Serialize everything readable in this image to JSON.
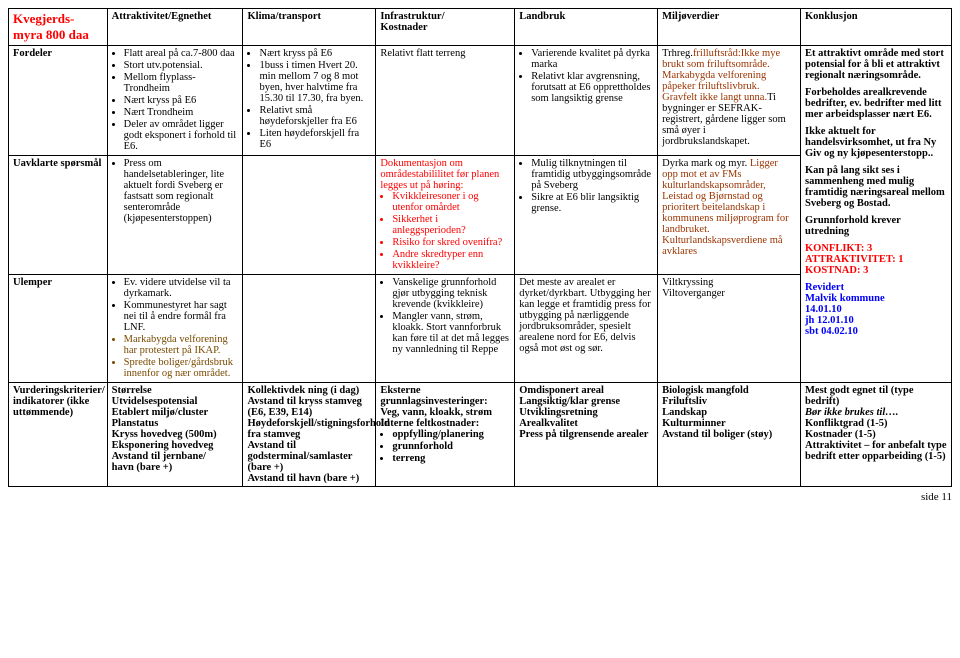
{
  "page": {
    "title_line1": "Kvegjerds-",
    "title_line2": "myra 800 daa",
    "footer": "side 11"
  },
  "cols": {
    "c0_width": 98,
    "c1_width": 135,
    "c2_width": 132,
    "c3_width": 138,
    "c4_width": 142,
    "c5_width": 142,
    "c6_width": 150
  },
  "headers": {
    "attraktivitet": "Attraktivitet/Egnethet",
    "klima": "Klima/transport",
    "infrastruktur_l1": "Infrastruktur/",
    "infrastruktur_l2": "Kostnader",
    "landbruk": "Landbruk",
    "miljoverdier": "Miljøverdier",
    "konklusjon": "Konklusjon"
  },
  "rowlabels": {
    "fordeler": "Fordeler",
    "uavklarte": "Uavklarte spørsmål",
    "ulemper": "Ulemper",
    "kriterier_l1": "Vurderingskriterier/",
    "kriterier_l2": "indikatorer (ikke",
    "kriterier_l3": "uttømmende)"
  },
  "colors": {
    "black": "#000000",
    "red": "#ff0000",
    "rust": "#993300",
    "blue": "#0000ff",
    "brown": "#7a4a00"
  },
  "fordeler": {
    "attr": [
      "Flatt areal på ca.7-800 daa",
      "Stort utv.potensial.",
      "Mellom flyplass-Trondheim",
      "Nært kryss på E6",
      "Nært Trondheim",
      "Deler av området ligger godt eksponert i forhold til E6."
    ],
    "klima": [
      "Nært kryss på E6",
      "1buss i timen Hvert 20. min mellom 7 og 8 mot byen, hver halvtime fra 15.30 til 17.30, fra byen.",
      "Relativt små høydeforskjeller fra E6",
      "Liten høydeforskjell fra E6"
    ],
    "infra": "Relativt flatt terreng",
    "landbruk": [
      "Varierende kvalitet på dyrka marka",
      "Relativt klar avgrensning, forutsatt at E6 opprettholdes som langsiktig grense"
    ],
    "miljo_pref": "Trhreg.",
    "miljo_txt": "frilluftsråd:Ikke mye brukt som friluftsområde. Markabygda velforening påpeker friluftslivbruk. Gravfelt ikke langt unna.",
    "miljo_suffix": "Ti bygninger er SEFRAK-registrert, gårdene ligger som små øyer i jordbrukslandskapet."
  },
  "uavklarte": {
    "attr": [
      "Press om handelsetableringer, lite aktuelt fordi Sveberg er fastsatt som regionalt senterområde (kjøpesenterstoppen)"
    ],
    "infra_intro": "Dokumentasjon om områdestabililitet før planen legges ut på høring:",
    "infra": [
      "Kvikkleiresoner i og utenfor omårdet",
      "Sikkerhet i anleggsperioden?",
      "Risiko for skred ovenifra?",
      "Andre skredtyper enn kvikkleire?"
    ],
    "landbruk": [
      "Mulig tilknytningen til framtidig utbyggingsområde på Sveberg",
      "Sikre at E6 blir langsiktig grense."
    ],
    "miljo_l1": "Dyrka mark og  myr.",
    "miljo_rest": "Ligger opp mot et av FMs kulturlandskapsområder, Leistad og Bjørnstad og prioritert beitelandskap i kommunens miljøprogram for landbruket.",
    "miljo_l2": "Kulturlandskapsverdiene må avklares"
  },
  "ulemper": {
    "attr_items": [
      {
        "text": "Ev. videre utvidelse vil ta dyrkamark.",
        "color": "#000000"
      },
      {
        "text": "Kommunestyret har sagt nei til å endre formål fra LNF.",
        "color": "#000000"
      },
      {
        "text": "Markabygda velforening har protestert på IKAP.",
        "color": "#7a4a00"
      },
      {
        "text": "Spredte boliger/gårdsbruk innenfor og nær området.",
        "color": "#7a4a00"
      }
    ],
    "infra": [
      "Vanskelige grunnforhold gjør utbygging teknisk krevende (kvikkleire)",
      "Mangler vann, strøm, kloakk. Stort vannforbruk kan føre til at det må legges ny vannledning til Reppe"
    ],
    "landbruk": "Det meste av arealet er dyrket/dyrkbart. Utbygging her kan legge et framtidig press for utbygging på nærliggende jordbruksområder, spesielt arealene  nord for E6, delvis også mot øst og sør.",
    "miljo_l1": "Viltkryssing",
    "miljo_l2": "Viltoverganger"
  },
  "kriterier": {
    "attr": [
      "Størrelse",
      "Utvidelsespotensial",
      "Etablert miljø/cluster",
      "Planstatus",
      "Kryss hovedveg (500m)",
      "Eksponering hovedveg",
      "Avstand til jernbane/",
      "havn (bare +)"
    ],
    "klima": [
      "Kollektivdek ning (i dag)",
      "Avstand til kryss stamveg (E6, E39, E14)",
      "Høydeforskjell/stigningsforhold fra stamveg",
      "Avstand til godsterminal/samlaster (bare +)",
      "Avstand til havn (bare +)"
    ],
    "infra_l1": "Eksterne grunnlagsinvesteringer:",
    "infra_l2": "Veg, vann, kloakk, strøm",
    "infra_l3": "Interne feltkostnader:",
    "infra_items": [
      "oppfylling/planering",
      "grunnforhold",
      "terreng"
    ],
    "landbruk": [
      "Omdisponert areal",
      "Langsiktig/klar grense",
      "Utviklingsretning",
      "Arealkvalitet",
      "Press på tilgrensende arealer"
    ],
    "miljo": [
      "Biologisk mangfold",
      "Friluftsliv",
      "Landskap",
      "Kulturminner",
      "Avstand til boliger (støy)"
    ]
  },
  "konklusjon": {
    "p1": "Et attraktivt område med stort potensial for å bli et attraktivt regionalt næringsområde.",
    "p2": "Forbeholdes arealkrevende bedrifter, ev. bedrifter med litt mer arbeidsplasser nært E6.",
    "p3": "Ikke aktuelt for handelsvirksomhet, ut fra Ny Giv og ny kjøpesenterstopp..",
    "p4": "Kan på lang sikt ses i sammenheng med mulig framtidig næringsareal mellom Sveberg og Bostad.",
    "p5": "Grunnforhold krever utredning",
    "k1": "KONFLIKT: 3",
    "k2": "ATTRAKTIVITET: 1",
    "k3": "KOSTNAD: 3",
    "rev": "Revidert",
    "rev2": "Malvik kommune",
    "d1": "14.01.10",
    "d2": "jh 12.01.10",
    "d3": "sbt 04.02.10",
    "bot1": "Mest godt egnet til (type bedrift)",
    "bot2": "Bør ikke brukes til….",
    "bot3": "Konfliktgrad (1-5)",
    "bot4": "Kostnader (1-5)",
    "bot5": "Attraktivitet – for anbefalt type bedrift etter opparbeiding (1-5)"
  }
}
